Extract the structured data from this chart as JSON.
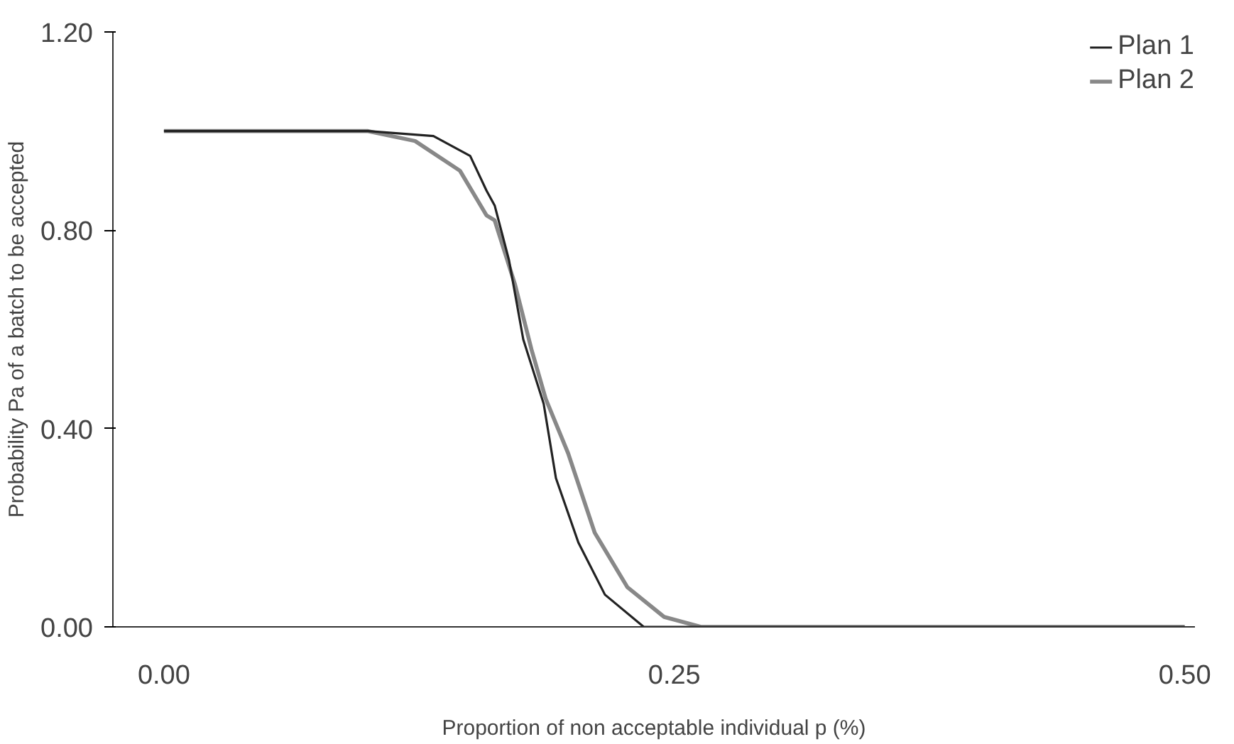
{
  "chart_data": {
    "type": "line",
    "xlabel": "Proportion of non acceptable individual p (%)",
    "ylabel": "Probability Pa of a batch to be accepted",
    "xlim": [
      -0.025,
      0.505
    ],
    "ylim": [
      0,
      1.2
    ],
    "xticks": [
      {
        "value": 0,
        "label": "0.00"
      },
      {
        "value": 0.25,
        "label": "0.25"
      },
      {
        "value": 0.5,
        "label": "0.50"
      }
    ],
    "yticks": [
      {
        "value": 0,
        "label": "0.00"
      },
      {
        "value": 0.4,
        "label": "0.40"
      },
      {
        "value": 0.8,
        "label": "0.80"
      },
      {
        "value": 1.2,
        "label": "1.20"
      }
    ],
    "grid": false,
    "legend": "top right",
    "line_style": "solid",
    "marker": "none",
    "series": [
      {
        "name": "Plan 1",
        "color": "#222222",
        "x": [
          0,
          0.1,
          0.132,
          0.15,
          0.158,
          0.162,
          0.169,
          0.176,
          0.186,
          0.192,
          0.203,
          0.216,
          0.235,
          0.3,
          0.5
        ],
        "values": [
          1,
          1,
          0.99,
          0.95,
          0.88,
          0.85,
          0.74,
          0.58,
          0.45,
          0.3,
          0.17,
          0.065,
          0,
          0,
          0
        ]
      },
      {
        "name": "Plan 2",
        "color": "#888888",
        "x": [
          0,
          0.1,
          0.123,
          0.145,
          0.158,
          0.162,
          0.172,
          0.18,
          0.187,
          0.198,
          0.211,
          0.227,
          0.245,
          0.263,
          0.3,
          0.5
        ],
        "values": [
          1,
          1,
          0.98,
          0.92,
          0.83,
          0.82,
          0.69,
          0.56,
          0.46,
          0.35,
          0.19,
          0.08,
          0.02,
          0,
          0,
          0
        ]
      }
    ]
  }
}
